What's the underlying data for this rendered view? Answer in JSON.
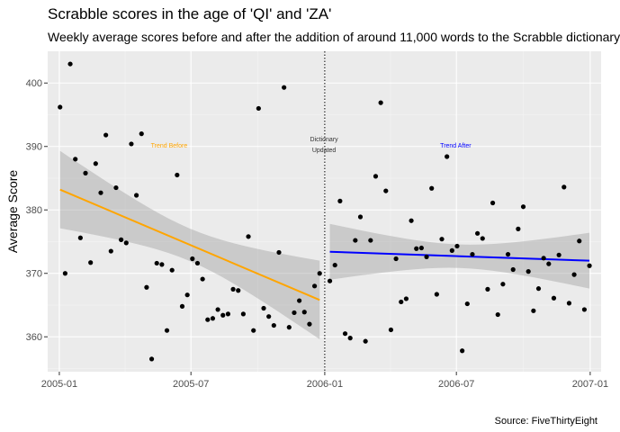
{
  "chart_data": {
    "type": "scatter",
    "title": "Scrabble scores in the age of 'QI' and 'ZA'",
    "subtitle": "Weekly average scores before and after the addition of around 11,000 words to the Scrabble dictionary",
    "xlabel": "",
    "ylabel": "Average Score",
    "caption": "Source: FiveThirtyEight",
    "x_tick_labels": [
      "2005-01",
      "2005-07",
      "2006-01",
      "2006-07",
      "2007-01"
    ],
    "x_ticks": [
      "2005-01-01",
      "2005-07-01",
      "2006-01-01",
      "2006-07-01",
      "2007-01-01"
    ],
    "xlim": [
      "2004-12-16",
      "2007-01-16"
    ],
    "y_ticks": [
      360,
      370,
      380,
      390,
      400
    ],
    "ylim": [
      354.5,
      405
    ],
    "grid": true,
    "background": "#ebebeb",
    "divider_date": "2006-01-01",
    "annotations": [
      {
        "text": "Trend Before",
        "x": "2005-06-01",
        "y": 389.8,
        "color": "#ffa500"
      },
      {
        "text": "Dictionary",
        "x": "2005-12-31",
        "y": 390.8,
        "color": "#333333"
      },
      {
        "text": "Updated",
        "x": "2005-12-31",
        "y": 389.1,
        "color": "#333333"
      },
      {
        "text": "Trend After",
        "x": "2006-06-30",
        "y": 389.8,
        "color": "#0000ff"
      }
    ],
    "series": [
      {
        "x": [
          "2005-01-02",
          "2005-01-09",
          "2005-01-16",
          "2005-01-23",
          "2005-01-30",
          "2005-02-06",
          "2005-02-13",
          "2005-02-20",
          "2005-02-27",
          "2005-03-06",
          "2005-03-13",
          "2005-03-20",
          "2005-03-27",
          "2005-04-03",
          "2005-04-10",
          "2005-04-17",
          "2005-04-24",
          "2005-05-01",
          "2005-05-08",
          "2005-05-15",
          "2005-05-22",
          "2005-05-29",
          "2005-06-05",
          "2005-06-12",
          "2005-06-19",
          "2005-06-26",
          "2005-07-03",
          "2005-07-10",
          "2005-07-17",
          "2005-07-24",
          "2005-07-31",
          "2005-08-07",
          "2005-08-14",
          "2005-08-21",
          "2005-08-28",
          "2005-09-04",
          "2005-09-11",
          "2005-09-18",
          "2005-09-25",
          "2005-10-02",
          "2005-10-09",
          "2005-10-16",
          "2005-10-23",
          "2005-10-30",
          "2005-11-06",
          "2005-11-13",
          "2005-11-20",
          "2005-11-27",
          "2005-12-04",
          "2005-12-11",
          "2005-12-18",
          "2005-12-25"
        ],
        "values": [
          396.2,
          370.0,
          403.0,
          388.0,
          375.6,
          385.8,
          371.7,
          387.3,
          382.7,
          391.8,
          373.5,
          383.5,
          375.3,
          374.8,
          390.4,
          382.3,
          392.0,
          367.8,
          356.5,
          371.6,
          371.4,
          361.0,
          370.5,
          385.5,
          364.8,
          366.6,
          372.3,
          371.6,
          369.1,
          362.7,
          362.9,
          364.3,
          363.4,
          363.6,
          367.5,
          367.3,
          363.6,
          375.8,
          361.0,
          396.0,
          364.5,
          363.2,
          361.8,
          373.3,
          399.3,
          361.5,
          363.8,
          365.7,
          363.9,
          362.0,
          368.0,
          370.0
        ]
      },
      {
        "x": [
          "2006-01-08",
          "2006-01-15",
          "2006-01-22",
          "2006-01-29",
          "2006-02-05",
          "2006-02-12",
          "2006-02-19",
          "2006-02-26",
          "2006-03-05",
          "2006-03-12",
          "2006-03-19",
          "2006-03-26",
          "2006-04-02",
          "2006-04-09",
          "2006-04-16",
          "2006-04-23",
          "2006-04-30",
          "2006-05-07",
          "2006-05-14",
          "2006-05-21",
          "2006-05-28",
          "2006-06-04",
          "2006-06-11",
          "2006-06-18",
          "2006-06-25",
          "2006-07-02",
          "2006-07-09",
          "2006-07-16",
          "2006-07-23",
          "2006-07-30",
          "2006-08-06",
          "2006-08-13",
          "2006-08-20",
          "2006-08-27",
          "2006-09-03",
          "2006-09-10",
          "2006-09-17",
          "2006-09-24",
          "2006-10-01",
          "2006-10-08",
          "2006-10-15",
          "2006-10-22",
          "2006-10-29",
          "2006-11-05",
          "2006-11-12",
          "2006-11-19",
          "2006-11-26",
          "2006-12-03",
          "2006-12-10",
          "2006-12-17",
          "2006-12-24",
          "2006-12-31"
        ],
        "values": [
          368.8,
          371.3,
          381.4,
          360.5,
          359.8,
          375.2,
          378.9,
          359.3,
          375.2,
          385.3,
          396.9,
          383.0,
          361.1,
          372.3,
          365.5,
          366.0,
          378.3,
          373.9,
          374.0,
          372.6,
          383.4,
          366.7,
          375.4,
          388.4,
          373.6,
          374.3,
          357.8,
          365.2,
          373.0,
          376.3,
          375.5,
          367.5,
          381.1,
          363.5,
          368.3,
          373.0,
          370.6,
          377.0,
          380.5,
          370.3,
          364.1,
          367.6,
          372.4,
          371.5,
          366.1,
          372.9,
          383.6,
          365.3,
          369.8,
          375.1,
          364.3,
          371.2
        ]
      }
    ],
    "trend_lines": [
      {
        "name": "Trend Before",
        "color": "#ffa500",
        "x": [
          "2005-01-02",
          "2005-12-25"
        ],
        "y": [
          383.2,
          365.8
        ],
        "band_lower": [
          377.1,
          359.6
        ],
        "band_upper": [
          389.3,
          372.0
        ]
      },
      {
        "name": "Trend After",
        "color": "#0000ff",
        "x": [
          "2006-01-08",
          "2006-12-31"
        ],
        "y": [
          373.4,
          372.0
        ],
        "band_lower": [
          369.0,
          367.7
        ],
        "band_upper": [
          377.8,
          376.4
        ]
      }
    ]
  }
}
